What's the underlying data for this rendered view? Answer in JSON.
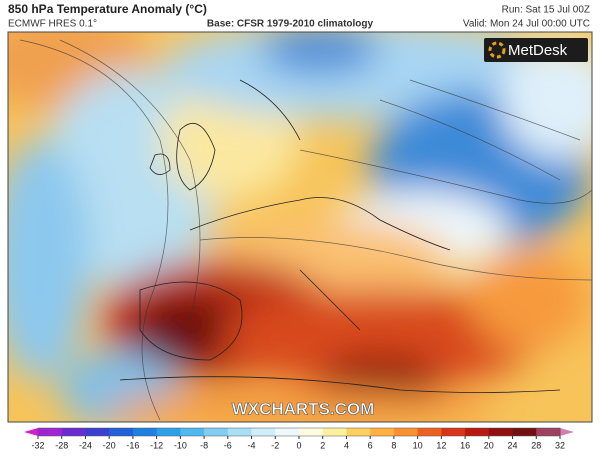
{
  "header": {
    "title": "850 hPa Temperature Anomaly (°C)",
    "model": "ECMWF HRES 0.1°",
    "base": "Base: CFSR 1979-2010 climatology",
    "run": "Run: Sat 15 Jul 00Z",
    "valid": "Valid: Mon 24 Jul 00:00 UTC"
  },
  "logo": "MetDesk",
  "watermark": "WXCHARTS.COM",
  "colorbar": {
    "ticks": [
      -32,
      -28,
      -24,
      -20,
      -16,
      -12,
      -10,
      -8,
      -6,
      -4,
      -2,
      0,
      2,
      4,
      6,
      8,
      10,
      12,
      16,
      20,
      24,
      28,
      32
    ],
    "colors": [
      "#d21fd0",
      "#a024d2",
      "#6a2cd0",
      "#3b3fd0",
      "#2060d8",
      "#1f80e0",
      "#2ba0e8",
      "#50b8ee",
      "#80cdf2",
      "#a8def6",
      "#cfeefa",
      "#eef8fc",
      "#fffbe0",
      "#fff0a0",
      "#ffd060",
      "#ffb040",
      "#f89030",
      "#ee6020",
      "#d83418",
      "#b81a10",
      "#901010",
      "#701010",
      "#a04060",
      "#d080b0"
    ]
  }
}
